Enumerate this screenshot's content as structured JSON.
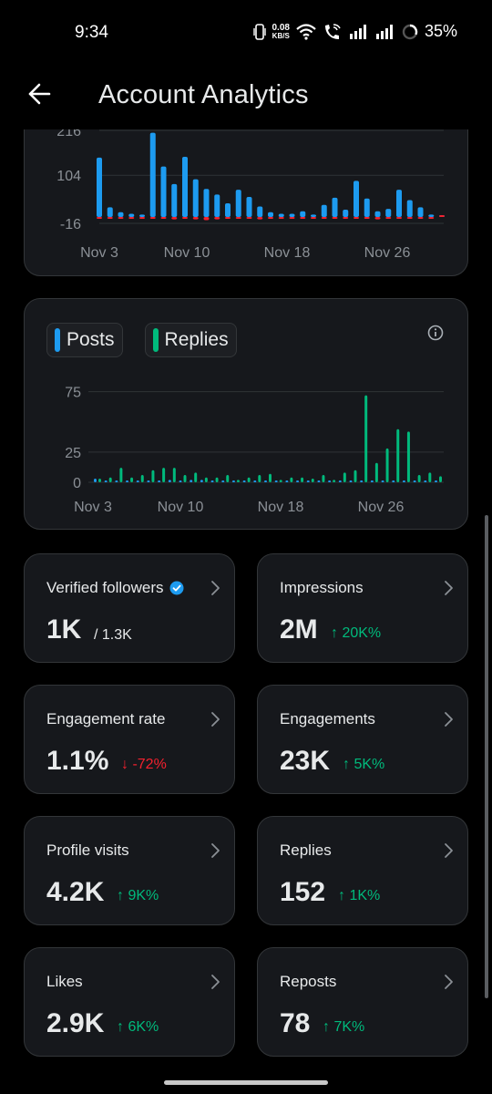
{
  "status_bar": {
    "time": "9:34",
    "net_speed_value": "0.08",
    "net_speed_unit": "KB/S",
    "battery": "35%",
    "icons": [
      "vibrate-icon",
      "wifi-icon",
      "wifi-call-icon",
      "signal-icon",
      "signal-icon",
      "battery-icon"
    ]
  },
  "header": {
    "title": "Account Analytics",
    "back_icon": "arrow-left-icon"
  },
  "colors": {
    "posts": "#1d9bf0",
    "replies": "#00ba7c",
    "negative": "#f4212e",
    "up": "#00ba7c",
    "down": "#f4212e"
  },
  "chart_data": [
    {
      "type": "bar",
      "ylim": [
        -16,
        216
      ],
      "y_ticks": [
        "216",
        "104",
        "-16"
      ],
      "x_ticks": [
        "Nov 3",
        "Nov 10",
        "Nov 18",
        "Nov 26"
      ],
      "series": [
        {
          "values": [
            148,
            24,
            12,
            8,
            6,
            210,
            126,
            82,
            150,
            94,
            70,
            56,
            34,
            68,
            50,
            26,
            12,
            8,
            8,
            14,
            6,
            30,
            48,
            18,
            90,
            46,
            14,
            20,
            68,
            42,
            24,
            6,
            4
          ]
        },
        {
          "values": [
            -4,
            -4,
            -4,
            -4,
            -2,
            -4,
            -4,
            -6,
            -4,
            -6,
            -8,
            -6,
            -4,
            -4,
            -4,
            -6,
            -4,
            -4,
            -4,
            -2,
            -2,
            -2,
            -2,
            -2,
            -4,
            -2,
            -6,
            -4,
            -4,
            -4,
            -4,
            -2,
            0
          ]
        }
      ]
    },
    {
      "type": "bar",
      "ylim": [
        0,
        80
      ],
      "y_ticks": [
        "75",
        "25",
        "0"
      ],
      "x_ticks": [
        "Nov 3",
        "Nov 10",
        "Nov 18",
        "Nov 26"
      ],
      "legend": [
        "Posts",
        "Replies"
      ],
      "series": [
        {
          "name": "Posts",
          "values": [
            3,
            1,
            1,
            1,
            1,
            1,
            1,
            2,
            1,
            2,
            2,
            1,
            1,
            1,
            1,
            1,
            1,
            1,
            1,
            1,
            1,
            1,
            1,
            1,
            1,
            1,
            1,
            1,
            1,
            1,
            1,
            1,
            1
          ]
        },
        {
          "name": "Replies",
          "values": [
            3,
            4,
            12,
            4,
            6,
            10,
            12,
            12,
            6,
            8,
            4,
            4,
            6,
            2,
            4,
            6,
            7,
            2,
            4,
            4,
            3,
            6,
            2,
            8,
            10,
            72,
            16,
            28,
            44,
            42,
            6,
            8,
            5
          ]
        }
      ]
    }
  ],
  "metrics": [
    {
      "label": "Verified followers",
      "value": "1K",
      "sub": "/ 1.3K",
      "change": "",
      "direction": "",
      "verified": true
    },
    {
      "label": "Impressions",
      "value": "2M",
      "sub": "",
      "change": "↑ 20K%",
      "direction": "up"
    },
    {
      "label": "Engagement rate",
      "value": "1.1%",
      "sub": "",
      "change": "↓ -72%",
      "direction": "down"
    },
    {
      "label": "Engagements",
      "value": "23K",
      "sub": "",
      "change": "↑ 5K%",
      "direction": "up"
    },
    {
      "label": "Profile visits",
      "value": "4.2K",
      "sub": "",
      "change": "↑ 9K%",
      "direction": "up"
    },
    {
      "label": "Replies",
      "value": "152",
      "sub": "",
      "change": "↑ 1K%",
      "direction": "up"
    },
    {
      "label": "Likes",
      "value": "2.9K",
      "sub": "",
      "change": "↑ 6K%",
      "direction": "up"
    },
    {
      "label": "Reposts",
      "value": "78",
      "sub": "",
      "change": "↑ 7K%",
      "direction": "up"
    }
  ]
}
